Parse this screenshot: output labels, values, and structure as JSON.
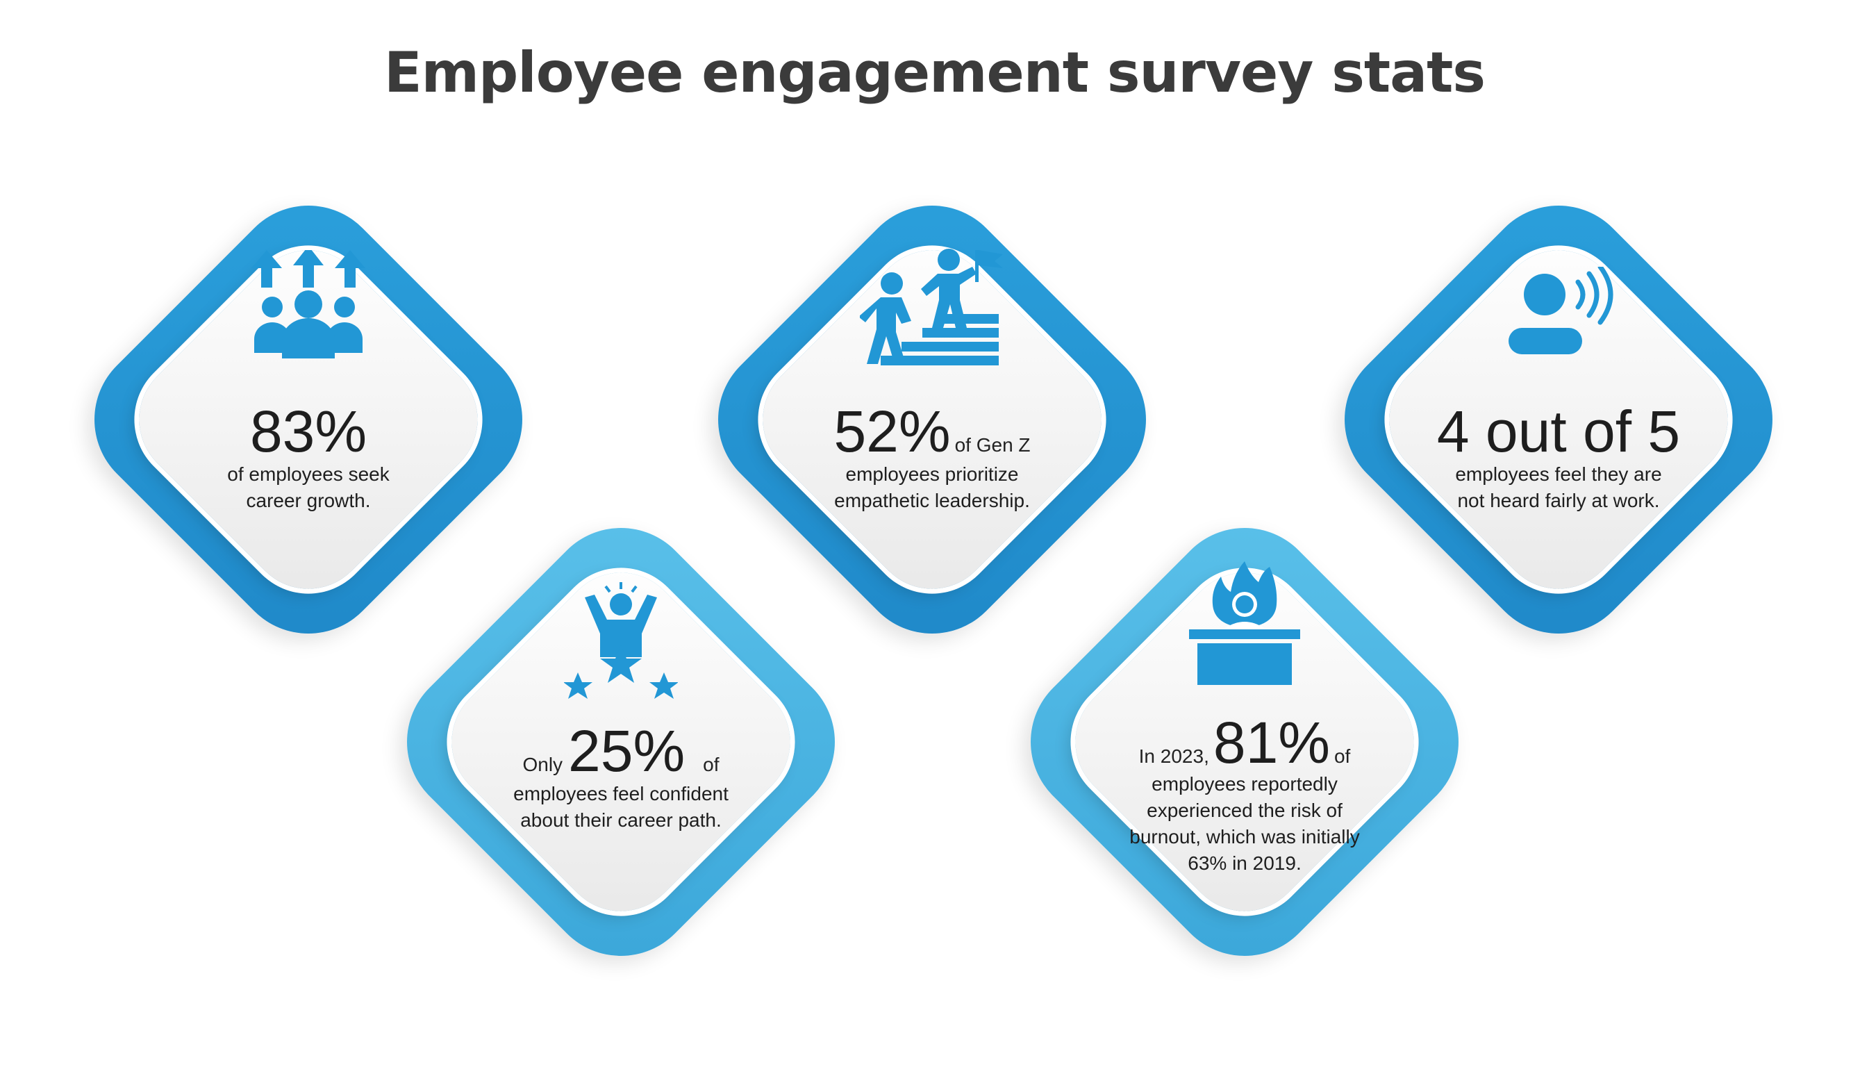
{
  "title": "Employee engagement survey stats",
  "colors": {
    "dark_blue": "#2297d5",
    "light_blue": "#4db6e4",
    "text": "#1e1e1e",
    "title": "#3b3b3b"
  },
  "cards": [
    {
      "icon": "people-growth-arrows-icon",
      "stat": "83%",
      "desc_line1": "of employees  seek",
      "desc_line2": "career growth."
    },
    {
      "icon": "leader-climbing-stairs-flag-icon",
      "stat": "52%",
      "stat_suffix": "of Gen Z",
      "desc_line1": "employees prioritize",
      "desc_line2": "empathetic leadership."
    },
    {
      "icon": "person-speaking-icon",
      "stat": "4 out of 5",
      "desc_line1": "employees feel they are",
      "desc_line2": "not heard fairly at work."
    },
    {
      "icon": "person-star-rating-icon",
      "stat_prefix": "Only",
      "stat": "25%",
      "stat_suffix": "of",
      "desc_line1": "employees feel confident",
      "desc_line2": "about their career path."
    },
    {
      "icon": "burnout-desk-fire-icon",
      "stat_prefix": "In 2023,",
      "stat": "81%",
      "stat_suffix": "of",
      "desc_line1": "employees reportedly",
      "desc_line2": "experienced the risk of",
      "desc_line3": "burnout, which was initially",
      "desc_line4": "63% in 2019."
    }
  ]
}
